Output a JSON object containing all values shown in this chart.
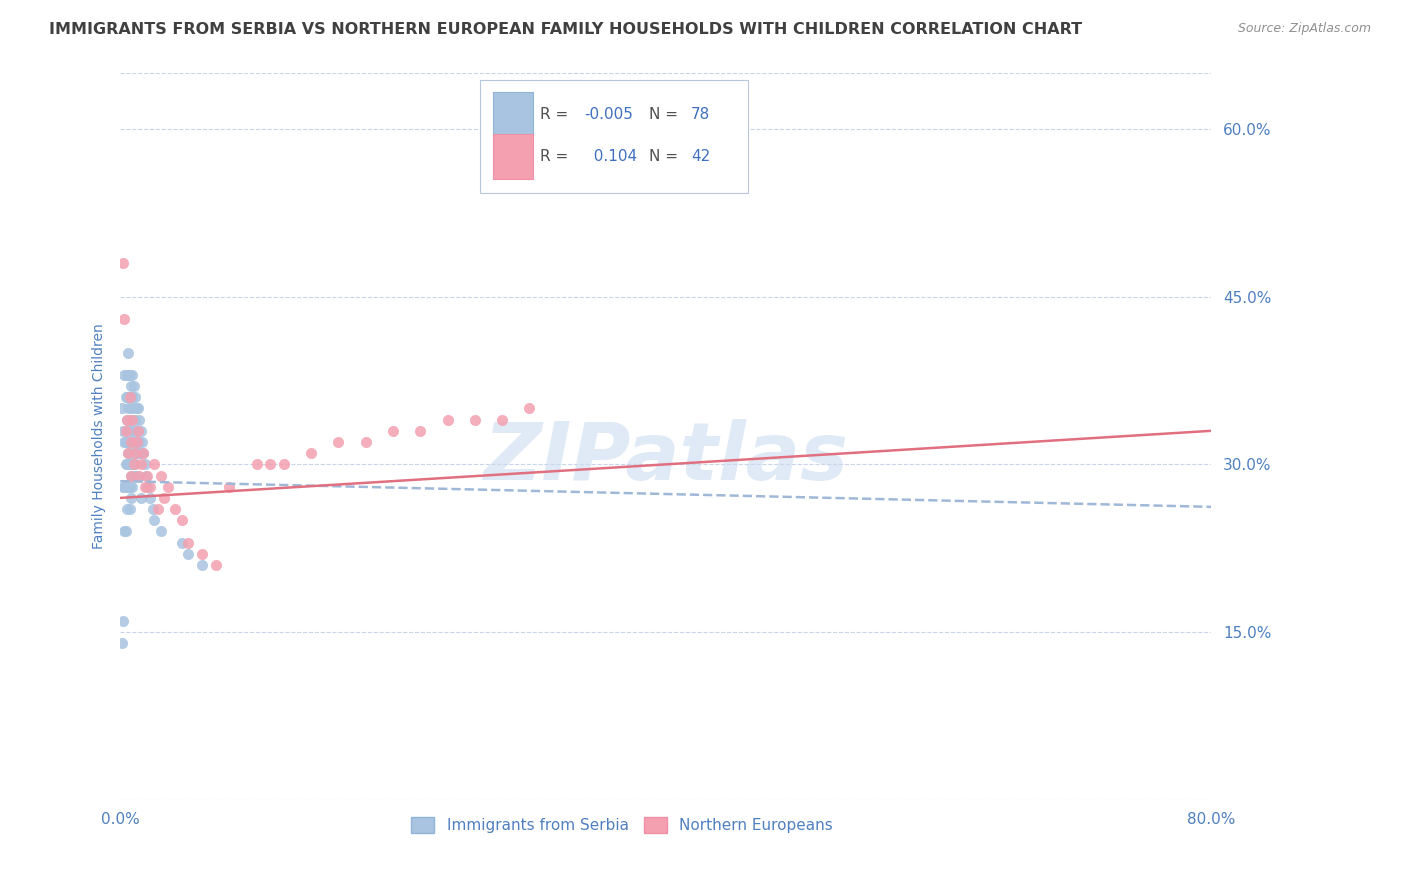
{
  "title": "IMMIGRANTS FROM SERBIA VS NORTHERN EUROPEAN FAMILY HOUSEHOLDS WITH CHILDREN CORRELATION CHART",
  "source": "Source: ZipAtlas.com",
  "ylabel": "Family Households with Children",
  "xlim": [
    0.0,
    0.8
  ],
  "ylim": [
    0.0,
    0.65
  ],
  "yticks": [
    0.15,
    0.3,
    0.45,
    0.6
  ],
  "ytick_labels": [
    "15.0%",
    "30.0%",
    "45.0%",
    "60.0%"
  ],
  "series1_name": "Immigrants from Serbia",
  "series1_color": "#a8c4e0",
  "series1_R": -0.005,
  "series1_N": 78,
  "series1_x": [
    0.001,
    0.001,
    0.002,
    0.002,
    0.002,
    0.003,
    0.003,
    0.003,
    0.003,
    0.004,
    0.004,
    0.004,
    0.004,
    0.004,
    0.005,
    0.005,
    0.005,
    0.005,
    0.005,
    0.005,
    0.006,
    0.006,
    0.006,
    0.006,
    0.006,
    0.006,
    0.007,
    0.007,
    0.007,
    0.007,
    0.007,
    0.007,
    0.007,
    0.008,
    0.008,
    0.008,
    0.008,
    0.008,
    0.008,
    0.009,
    0.009,
    0.009,
    0.009,
    0.009,
    0.009,
    0.01,
    0.01,
    0.01,
    0.01,
    0.01,
    0.011,
    0.011,
    0.011,
    0.011,
    0.012,
    0.012,
    0.012,
    0.012,
    0.013,
    0.013,
    0.013,
    0.014,
    0.014,
    0.015,
    0.015,
    0.015,
    0.016,
    0.017,
    0.018,
    0.019,
    0.02,
    0.022,
    0.024,
    0.025,
    0.03,
    0.045,
    0.05,
    0.06
  ],
  "series1_y": [
    0.35,
    0.14,
    0.33,
    0.28,
    0.16,
    0.38,
    0.32,
    0.28,
    0.24,
    0.36,
    0.32,
    0.3,
    0.28,
    0.24,
    0.38,
    0.36,
    0.34,
    0.32,
    0.3,
    0.26,
    0.4,
    0.38,
    0.35,
    0.33,
    0.31,
    0.28,
    0.38,
    0.36,
    0.34,
    0.32,
    0.3,
    0.28,
    0.26,
    0.37,
    0.35,
    0.33,
    0.31,
    0.29,
    0.27,
    0.38,
    0.36,
    0.34,
    0.32,
    0.3,
    0.28,
    0.37,
    0.35,
    0.33,
    0.31,
    0.29,
    0.36,
    0.34,
    0.32,
    0.3,
    0.35,
    0.33,
    0.31,
    0.29,
    0.35,
    0.33,
    0.31,
    0.34,
    0.32,
    0.33,
    0.31,
    0.27,
    0.32,
    0.31,
    0.3,
    0.29,
    0.28,
    0.27,
    0.26,
    0.25,
    0.24,
    0.23,
    0.22,
    0.21
  ],
  "series2_name": "Northern Europeans",
  "series2_color": "#f4a0b0",
  "series2_R": 0.104,
  "series2_N": 42,
  "series2_x": [
    0.002,
    0.003,
    0.004,
    0.005,
    0.006,
    0.007,
    0.008,
    0.008,
    0.009,
    0.01,
    0.011,
    0.012,
    0.013,
    0.014,
    0.015,
    0.017,
    0.018,
    0.02,
    0.022,
    0.025,
    0.028,
    0.03,
    0.032,
    0.035,
    0.04,
    0.045,
    0.05,
    0.06,
    0.07,
    0.08,
    0.1,
    0.11,
    0.12,
    0.14,
    0.16,
    0.18,
    0.2,
    0.22,
    0.24,
    0.26,
    0.28,
    0.3
  ],
  "series2_y": [
    0.48,
    0.43,
    0.33,
    0.34,
    0.31,
    0.36,
    0.32,
    0.29,
    0.34,
    0.3,
    0.31,
    0.32,
    0.33,
    0.29,
    0.3,
    0.31,
    0.28,
    0.29,
    0.28,
    0.3,
    0.26,
    0.29,
    0.27,
    0.28,
    0.26,
    0.25,
    0.23,
    0.22,
    0.21,
    0.28,
    0.3,
    0.3,
    0.3,
    0.31,
    0.32,
    0.32,
    0.33,
    0.33,
    0.34,
    0.34,
    0.34,
    0.35
  ],
  "trendline1_color": "#a0b8d8",
  "trendline2_color": "#e07080",
  "trendline1_start_y": 0.285,
  "trendline1_end_y": 0.262,
  "trendline2_start_y": 0.27,
  "trendline2_end_y": 0.33,
  "watermark": "ZIPatlas",
  "background_color": "#ffffff",
  "grid_color": "#c8d4e8",
  "title_color": "#404040",
  "axis_label_color": "#5080c0",
  "legend_R_color": "#4070c0",
  "legend_N_color": "#4070c0"
}
